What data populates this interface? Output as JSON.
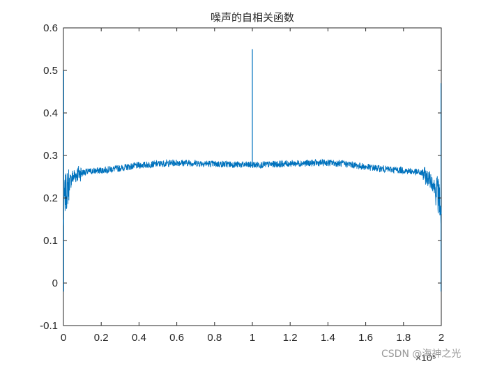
{
  "chart_data": {
    "type": "line",
    "title": "噪声的自相关函数",
    "xlabel": "",
    "ylabel": "",
    "xlim": [
      0,
      2
    ],
    "ylim": [
      -0.1,
      0.6
    ],
    "x_scale_label": "×10⁵",
    "x_ticks": [
      "0",
      "0.2",
      "0.4",
      "0.6",
      "0.8",
      "1",
      "1.2",
      "1.4",
      "1.6",
      "1.8",
      "2"
    ],
    "y_ticks": [
      "-0.1",
      "0",
      "0.1",
      "0.2",
      "0.3",
      "0.4",
      "0.5",
      "0.6"
    ],
    "grid": false,
    "box": true,
    "series": [
      {
        "color": "#0072BD",
        "x": [
          0,
          0.005,
          0.01,
          0.02,
          0.03,
          0.05,
          0.08,
          0.1,
          0.15,
          0.2,
          0.3,
          0.4,
          0.5,
          0.6,
          0.7,
          0.8,
          0.9,
          0.95,
          0.99,
          1.0,
          1.01,
          1.05,
          1.1,
          1.2,
          1.3,
          1.4,
          1.5,
          1.6,
          1.7,
          1.8,
          1.85,
          1.9,
          1.92,
          1.95,
          1.97,
          1.98,
          1.99,
          1.995,
          2.0
        ],
        "y": [
          0.14,
          0.2,
          0.21,
          0.22,
          0.235,
          0.25,
          0.258,
          0.26,
          0.263,
          0.265,
          0.27,
          0.277,
          0.28,
          0.283,
          0.282,
          0.28,
          0.279,
          0.278,
          0.278,
          0.55,
          0.278,
          0.278,
          0.279,
          0.281,
          0.282,
          0.283,
          0.28,
          0.273,
          0.268,
          0.265,
          0.262,
          0.258,
          0.25,
          0.24,
          0.22,
          0.21,
          0.2,
          0.18,
          0.14
        ]
      }
    ]
  },
  "watermark": "CSDN @海神之光"
}
